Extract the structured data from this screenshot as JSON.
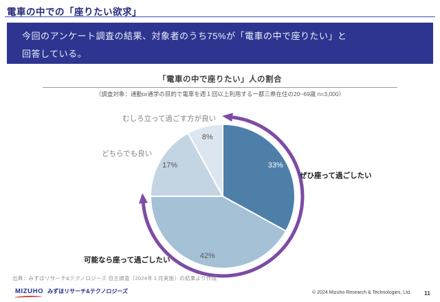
{
  "header": {
    "title": "電車の中での「座りたい欲求」"
  },
  "summary_box": {
    "line1": "今回のアンケート調査の結果、対象者のうち75%が「電車の中で座りたい」と",
    "line2": "回答している。"
  },
  "chart": {
    "title": "「電車の中で座りたい」人の割合",
    "subtitle": "（調査対象：通勤or通学の目的で電車を週１回以上利用する一都三県在住の20~69歳 n=3,000）"
  },
  "chart_data": {
    "type": "pie",
    "title": "「電車の中で座りたい」人の割合",
    "categories": [
      "ぜひ座って過ごしたい",
      "可能なら座って過ごしたい",
      "どちらでも良い",
      "むしろ立って過ごす方が良い"
    ],
    "values": [
      33,
      42,
      17,
      8
    ],
    "unit": "%",
    "start_angle_deg": 0,
    "direction": "clockwise",
    "slice_colors": [
      "#4d7fa9",
      "#a5c1d6",
      "#c3d4e3",
      "#dce6f0"
    ],
    "percent_label_colors": [
      "#ffffff",
      "#595959",
      "#595959",
      "#595959"
    ],
    "annotation": {
      "description": "purple double-headed arc spanning the 75% who want to sit (33% + 42%)",
      "arc_color": "#7d4ba5",
      "covered_categories": [
        "ぜひ座って過ごしたい",
        "可能なら座って過ごしたい"
      ],
      "covered_total_pct": 75
    }
  },
  "source": "出典：みずほリサーチ&テクノロジーズ 自主調査（2024年１月実施）の結果より作成",
  "footer": {
    "logo_text": "MIZUHO",
    "logo_company": "みずほリサーチ&テクノロジーズ",
    "copyright": "© 2024 Mizuho Research & Technologies, Ltd.",
    "page_number": "11"
  }
}
